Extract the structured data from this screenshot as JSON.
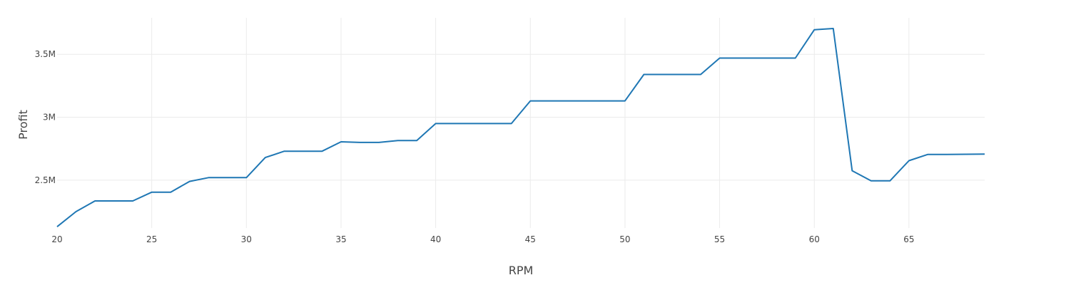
{
  "chart_data": {
    "type": "line",
    "title": "",
    "xlabel": "RPM",
    "ylabel": "Profit",
    "xlim": [
      20,
      69
    ],
    "ylim": [
      2120000,
      3790000
    ],
    "grid": true,
    "legend": "none",
    "x_ticks": [
      {
        "value": 20,
        "label": "20"
      },
      {
        "value": 25,
        "label": "25"
      },
      {
        "value": 30,
        "label": "30"
      },
      {
        "value": 35,
        "label": "35"
      },
      {
        "value": 40,
        "label": "40"
      },
      {
        "value": 45,
        "label": "45"
      },
      {
        "value": 50,
        "label": "50"
      },
      {
        "value": 55,
        "label": "55"
      },
      {
        "value": 60,
        "label": "60"
      },
      {
        "value": 65,
        "label": "65"
      }
    ],
    "y_ticks": [
      {
        "value": 2500000,
        "label": "2.5M"
      },
      {
        "value": 3000000,
        "label": "3M"
      },
      {
        "value": 3500000,
        "label": "3.5M"
      }
    ],
    "series": [
      {
        "color": "#1f77b4",
        "x": [
          20,
          21,
          22,
          23,
          24,
          25,
          26,
          27,
          28,
          29,
          30,
          31,
          32,
          33,
          34,
          35,
          36,
          37,
          38,
          39,
          40,
          41,
          42,
          43,
          44,
          45,
          46,
          47,
          48,
          49,
          50,
          51,
          52,
          53,
          54,
          55,
          56,
          57,
          58,
          59,
          60,
          61,
          62,
          63,
          64,
          65,
          66,
          67,
          68,
          69
        ],
        "values": [
          2130000,
          2250000,
          2335000,
          2335000,
          2335000,
          2405000,
          2405000,
          2490000,
          2520000,
          2520000,
          2520000,
          2680000,
          2730000,
          2730000,
          2730000,
          2805000,
          2800000,
          2800000,
          2815000,
          2815000,
          2950000,
          2950000,
          2950000,
          2950000,
          2950000,
          3130000,
          3130000,
          3130000,
          3130000,
          3130000,
          3130000,
          3340000,
          3340000,
          3340000,
          3340000,
          3470000,
          3470000,
          3470000,
          3470000,
          3470000,
          3695000,
          3705000,
          2575000,
          2495000,
          2495000,
          2655000,
          2705000,
          2705000,
          2706000,
          2707000
        ]
      }
    ]
  }
}
